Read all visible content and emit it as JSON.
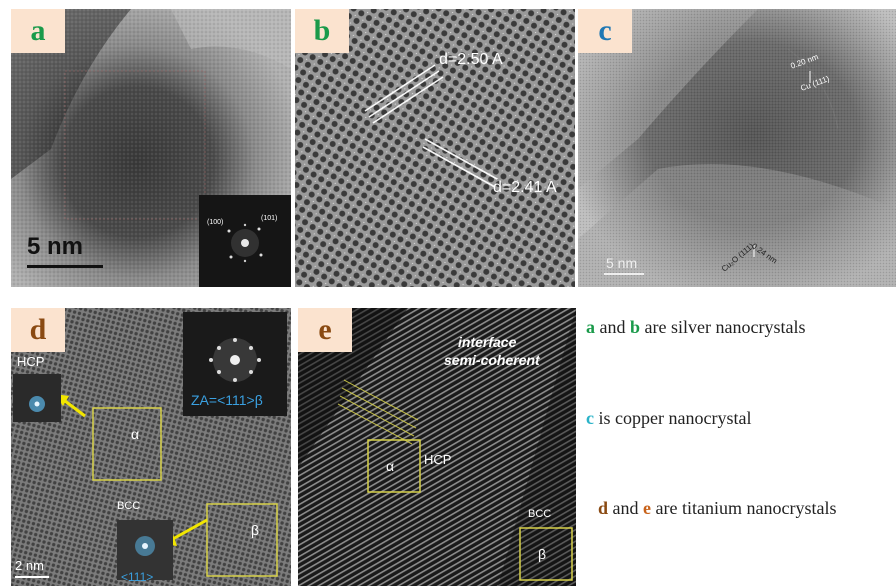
{
  "panels": {
    "a": {
      "letter": "a",
      "scale_bar": "5 nm",
      "fft_labels": [
        "(100)",
        "(101)"
      ]
    },
    "b": {
      "letter": "b",
      "d1": "d=2.50 A",
      "d2": "d=2.41 A"
    },
    "c": {
      "letter": "c",
      "top_spacing": "0.20 nm",
      "top_plane": "Cu (111)",
      "bottom_spacing": "0.24 nm",
      "bottom_plane": "Cu₂O (111)",
      "scale_bar": "5 nm"
    },
    "d": {
      "letter": "d",
      "hcp_label": "HCP",
      "za_label": "ZA=<111>β",
      "alpha_label": "α",
      "bcc_label": "BCC",
      "beta_label": "β",
      "zone_label": "<111>",
      "scale_bar": "2 nm"
    },
    "e": {
      "letter": "e",
      "interface_line1": "interface",
      "interface_line2": "semi-coherent",
      "hcp_label": "HCP",
      "alpha_label": "α",
      "bcc_label": "BCC",
      "beta_label": "β"
    }
  },
  "captions": {
    "line1": {
      "k1": "a",
      "mid": " and ",
      "k2": "b",
      "rest": " are silver nanocrystals"
    },
    "line2": {
      "k1": "c",
      "rest": " is copper nanocrystal"
    },
    "line3": {
      "k1": "d",
      "mid": " and ",
      "k2": "e",
      "rest": " are titanium nanocrystals"
    }
  },
  "colors": {
    "letter_bg": "#fbe3cf",
    "letter_a": "#1a9a4a",
    "letter_b": "#1a9a4a",
    "letter_c": "#1f78b4",
    "letter_d": "#8a4a12",
    "letter_e": "#8a4a12",
    "yellow_box": "#d8d24a",
    "cyan_text": "#3aa0e0"
  }
}
